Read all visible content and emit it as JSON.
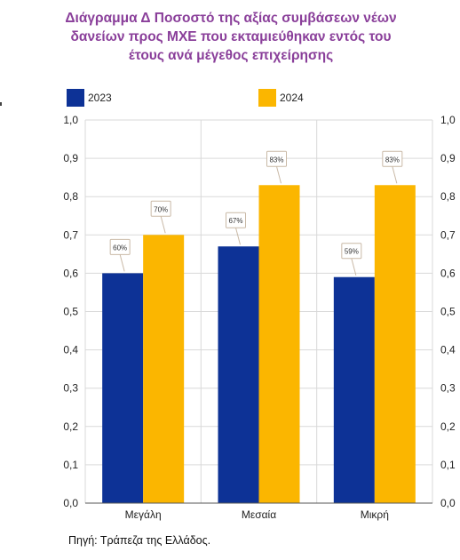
{
  "title_lines": [
    "Διάγραμμα Δ Ποσοστό της αξίας συμβάσεων νέων",
    "δανείων προς ΜΧΕ που εκταμιεύθηκαν εντός του",
    "έτους ανά μέγεθος επιχείρησης"
  ],
  "source": "Πηγή: Τράπεζα της Ελλάδος.",
  "colors": {
    "2023": "#0d3296",
    "2024": "#fbb600",
    "title": "#8a3f9a",
    "grid": "#d9d9d9"
  },
  "chart_data": {
    "type": "bar",
    "categories": [
      "Μεγάλη",
      "Μεσαία",
      "Μικρή"
    ],
    "series": [
      {
        "name": "2023",
        "values": [
          0.6,
          0.67,
          0.59
        ],
        "labels": [
          "60%",
          "67%",
          "59%"
        ]
      },
      {
        "name": "2024",
        "values": [
          0.7,
          0.83,
          0.83
        ],
        "labels": [
          "70%",
          "83%",
          "83%"
        ]
      }
    ],
    "ylim": [
      0,
      1.0
    ],
    "yticks": [
      "0,0",
      "0,1",
      "0,2",
      "0,3",
      "0,4",
      "0,5",
      "0,6",
      "0,7",
      "0,8",
      "0,9",
      "1,0"
    ],
    "secondary_yaxis": true,
    "grid": true,
    "legend_position": "top"
  }
}
